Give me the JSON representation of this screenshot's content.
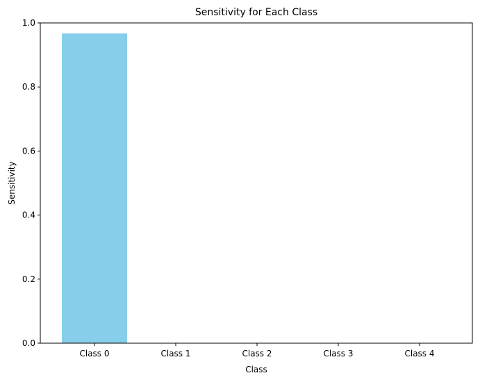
{
  "chart_data": {
    "type": "bar",
    "title": "Sensitivity for Each Class",
    "xlabel": "Class",
    "ylabel": "Sensitivity",
    "categories": [
      "Class 0",
      "Class 1",
      "Class 2",
      "Class 3",
      "Class 4"
    ],
    "values": [
      0.967,
      0,
      0,
      0,
      0
    ],
    "ylim": [
      0,
      1.0
    ],
    "yticks": [
      "0.0",
      "0.2",
      "0.4",
      "0.6",
      "0.8",
      "1.0"
    ],
    "bar_color": "#87ceeb",
    "grid": false,
    "legend": "none"
  }
}
